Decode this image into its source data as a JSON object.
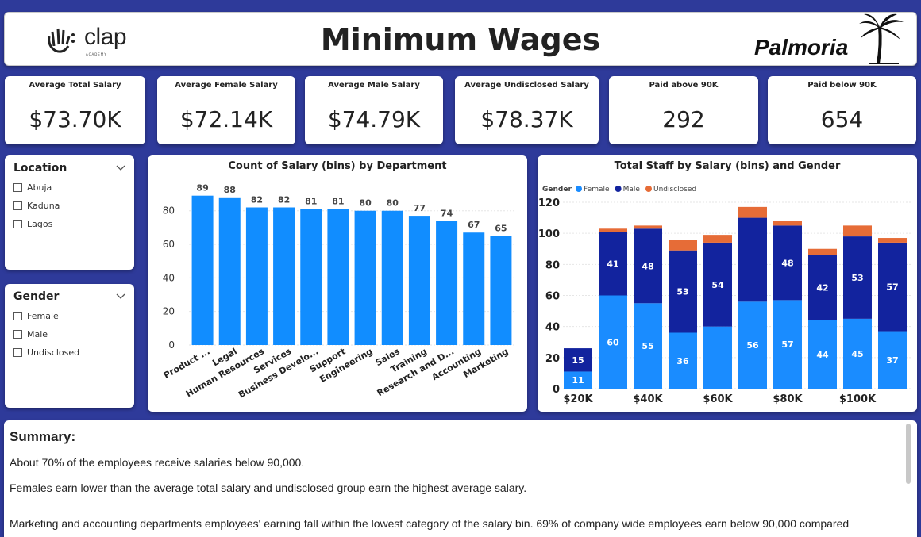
{
  "header": {
    "title": "Minimum Wages",
    "left_logo_text": "clap",
    "left_logo_subtext": "ACADEMY",
    "right_logo_text": "Palmoria"
  },
  "kpis": [
    {
      "label": "Average Total Salary",
      "value": "$73.70K"
    },
    {
      "label": "Average Female Salary",
      "value": "$72.14K"
    },
    {
      "label": "Average Male Salary",
      "value": "$74.79K"
    },
    {
      "label": "Average Undisclosed Salary",
      "value": "$78.37K"
    },
    {
      "label": "Paid above 90K",
      "value": "292"
    },
    {
      "label": "Paid below 90K",
      "value": "654"
    }
  ],
  "slicers": {
    "location": {
      "title": "Location",
      "items": [
        "Abuja",
        "Kaduna",
        "Lagos"
      ]
    },
    "gender": {
      "title": "Gender",
      "items": [
        "Female",
        "Male",
        "Undisclosed"
      ]
    }
  },
  "colors": {
    "bar_blue": "#118dff",
    "female": "#1a8cff",
    "male": "#12239e",
    "undisclosed": "#e66c37"
  },
  "chart_data": [
    {
      "type": "bar",
      "title": "Count of Salary (bins) by Department",
      "categories": [
        "Product ...",
        "Legal",
        "Human Resources",
        "Services",
        "Business Develo...",
        "Support",
        "Engineering",
        "Sales",
        "Training",
        "Research and D...",
        "Accounting",
        "Marketing"
      ],
      "values": [
        89,
        88,
        82,
        82,
        81,
        81,
        80,
        80,
        77,
        74,
        67,
        65
      ],
      "yticks": [
        0,
        20,
        40,
        60,
        80
      ],
      "ylim": [
        0,
        95
      ],
      "grid": true
    },
    {
      "type": "bar",
      "stacked": true,
      "title": "Total Staff by Salary (bins) and Gender",
      "legend_title": "Gender",
      "legend_position": "top-left",
      "x_labels": [
        "$20K",
        "$40K",
        "$60K",
        "$80K",
        "$100K"
      ],
      "x": [
        20,
        30,
        40,
        50,
        60,
        70,
        80,
        90,
        100,
        110
      ],
      "series": [
        {
          "name": "Female",
          "values": [
            11,
            60,
            55,
            36,
            40,
            56,
            57,
            44,
            45,
            37
          ],
          "labels": [
            "11",
            "60",
            "55",
            "36",
            "",
            "56",
            "57",
            "44",
            "45",
            "37"
          ]
        },
        {
          "name": "Male",
          "values": [
            15,
            41,
            48,
            53,
            54,
            54,
            48,
            42,
            53,
            57
          ],
          "labels": [
            "15",
            "41",
            "48",
            "53",
            "54",
            "",
            "48",
            "42",
            "53",
            "57"
          ]
        },
        {
          "name": "Undisclosed",
          "values": [
            0,
            2,
            2,
            7,
            5,
            7,
            3,
            4,
            7,
            3
          ],
          "labels": [
            "",
            "",
            "",
            "",
            "",
            "",
            "",
            "",
            "",
            ""
          ]
        }
      ],
      "yticks": [
        0,
        20,
        40,
        60,
        80,
        100,
        120
      ],
      "ylim": [
        0,
        120
      ],
      "grid": true
    }
  ],
  "summary": {
    "title": "Summary:",
    "lines": [
      "About 70% of the employees receive salaries below 90,000.",
      "Females earn lower than the average total salary and undisclosed group earn the highest average salary.",
      "Marketing  and accounting departments employees' earning fall within the lowest category of the salary bin. 69% of company wide employees earn below 90,000 compared"
    ]
  }
}
